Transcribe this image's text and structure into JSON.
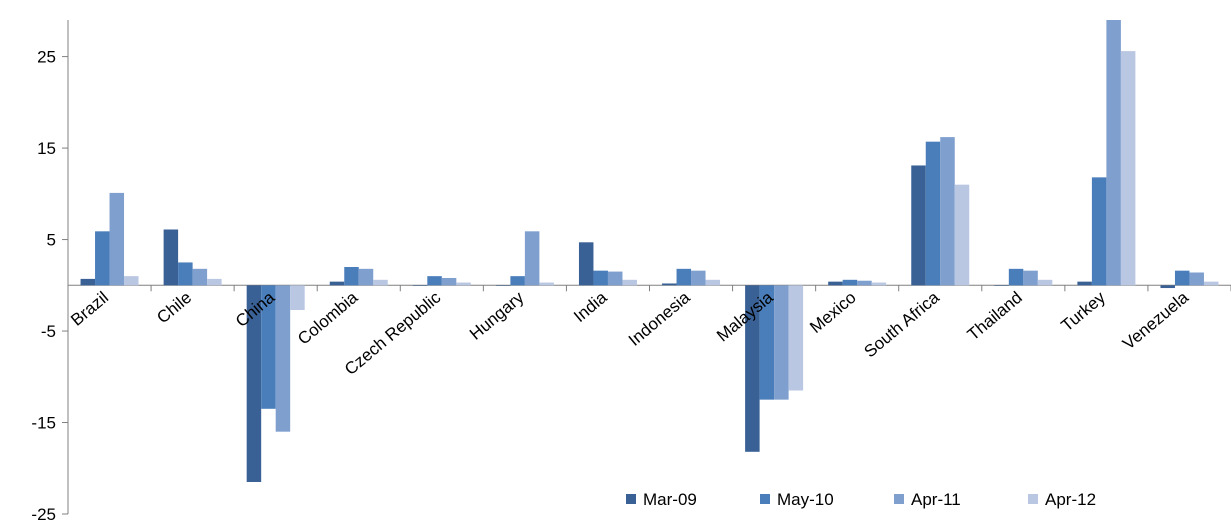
{
  "chart_data": {
    "type": "bar",
    "title": "",
    "xlabel": "",
    "ylabel": "",
    "ylim": [
      -25,
      29
    ],
    "yticks": [
      -25,
      -15,
      -5,
      5,
      15,
      25
    ],
    "grid": false,
    "legend_position": "bottom-right",
    "categories": [
      "Brazil",
      "Chile",
      "China",
      "Colombia",
      "Czech Republic",
      "Hungary",
      "India",
      "Indonesia",
      "Malaysia",
      "Mexico",
      "South Africa",
      "Thailand",
      "Turkey",
      "Venezuela"
    ],
    "series": [
      {
        "name": "Mar-09",
        "color": "#3A6195",
        "values": [
          0.7,
          6.1,
          -21.5,
          0.4,
          0.0,
          0.0,
          4.7,
          0.2,
          -18.2,
          0.4,
          13.1,
          0.0,
          0.4,
          -0.3
        ]
      },
      {
        "name": "May-10",
        "color": "#4A7EBB",
        "values": [
          5.9,
          2.5,
          -13.5,
          2.0,
          1.0,
          1.0,
          1.6,
          1.8,
          -12.5,
          0.6,
          15.7,
          1.8,
          11.8,
          1.6
        ]
      },
      {
        "name": "Apr-11",
        "color": "#7F9FCF",
        "values": [
          10.1,
          1.8,
          -16.0,
          1.8,
          0.8,
          5.9,
          1.5,
          1.6,
          -12.5,
          0.5,
          16.2,
          1.6,
          29.0,
          1.4
        ]
      },
      {
        "name": "Apr-12",
        "color": "#B9C7E2",
        "values": [
          1.0,
          0.7,
          -2.7,
          0.6,
          0.3,
          0.3,
          0.6,
          0.6,
          -11.5,
          0.3,
          11.0,
          0.6,
          25.6,
          0.4
        ]
      }
    ]
  }
}
